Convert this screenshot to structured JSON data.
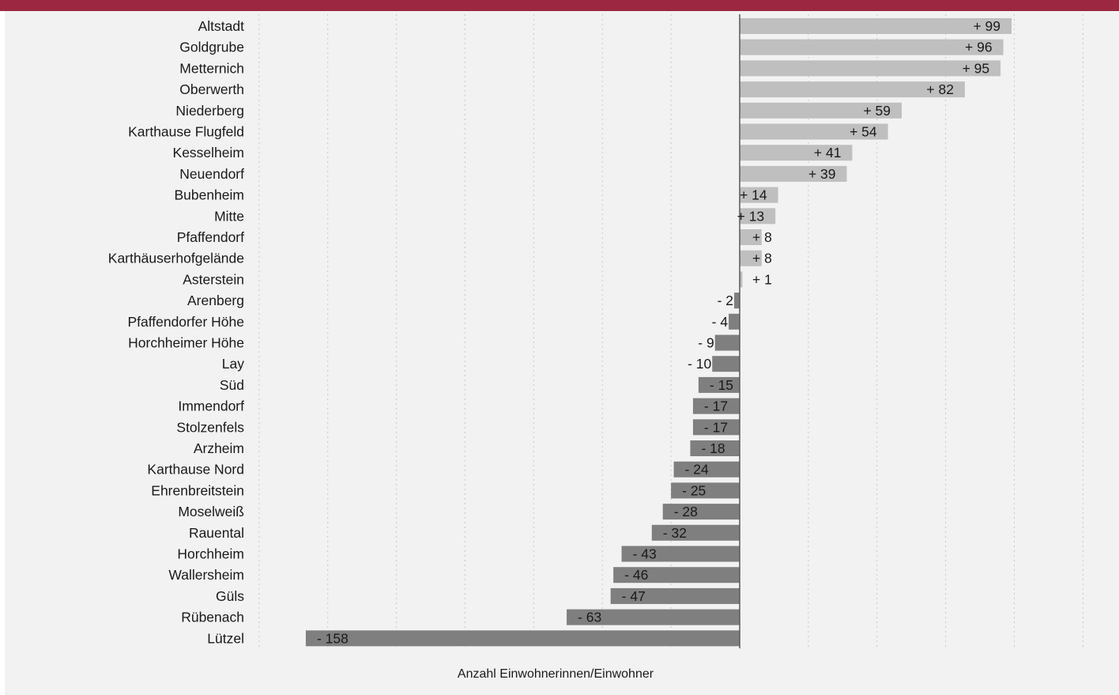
{
  "chart_data": {
    "type": "bar",
    "orientation": "horizontal",
    "xlabel": "Anzahl Einwohnerinnen/Einwohner",
    "xlim": [
      -175,
      250
    ],
    "grid": true,
    "colors": {
      "positive": "#bfbfbf",
      "negative": "#7f7f7f",
      "header": "#9b2740",
      "background": "#f2f2f2"
    },
    "categories": [
      "Altstadt",
      "Goldgrube",
      "Metternich",
      "Oberwerth",
      "Niederberg",
      "Karthause Flugfeld",
      "Kesselheim",
      "Neuendorf",
      "Bubenheim",
      "Mitte",
      "Pfaffendorf",
      "Karthäuserhofgelände",
      "Asterstein",
      "Arenberg",
      "Pfaffendorfer Höhe",
      "Horchheimer Höhe",
      "Lay",
      "Süd",
      "Immendorf",
      "Stolzenfels",
      "Arzheim",
      "Karthause Nord",
      "Ehrenbreitstein",
      "Moselweiß",
      "Rauental",
      "Horchheim",
      "Wallersheim",
      "Güls",
      "Rübenach",
      "Lützel"
    ],
    "values": [
      99,
      96,
      95,
      82,
      59,
      54,
      41,
      39,
      14,
      13,
      8,
      8,
      1,
      -2,
      -4,
      -9,
      -10,
      -15,
      -17,
      -17,
      -18,
      -24,
      -25,
      -28,
      -32,
      -43,
      -46,
      -47,
      -63,
      -158
    ],
    "value_labels": [
      "+ 99",
      "+ 96",
      "+ 95",
      "+ 82",
      "+ 59",
      "+ 54",
      "+ 41",
      "+ 39",
      "+ 14",
      "+ 13",
      "+ 8",
      "+ 8",
      "+ 1",
      "- 2",
      "- 4",
      "- 9",
      "- 10",
      "- 15",
      "- 17",
      "- 17",
      "- 18",
      "- 24",
      "- 25",
      "- 28",
      "- 32",
      "- 43",
      "- 46",
      "- 47",
      "- 63",
      "- 158"
    ]
  }
}
